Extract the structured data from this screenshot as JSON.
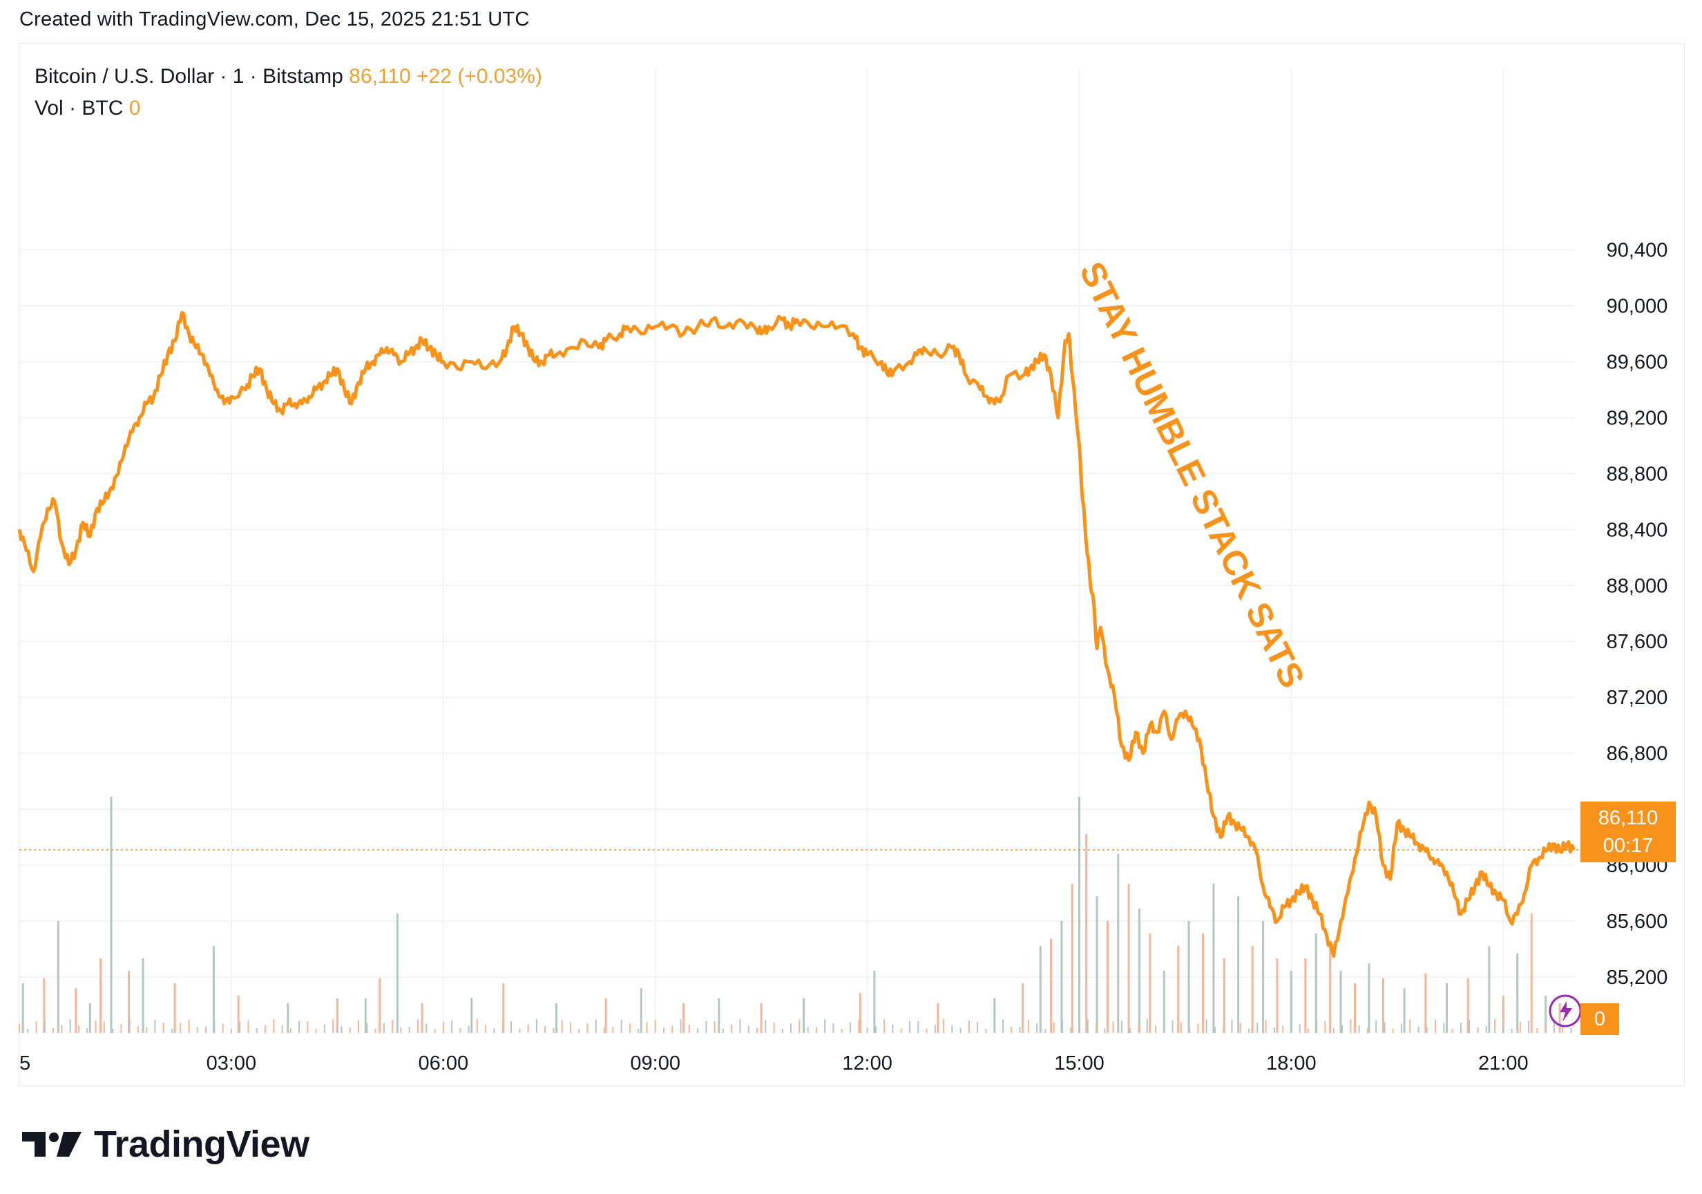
{
  "header": {
    "created_text": "Created with TradingView.com, Dec 15, 2025 21:51 UTC"
  },
  "legend": {
    "symbol": "Bitcoin / U.S. Dollar · 1 · Bitstamp",
    "last_price": "86,110",
    "change": "+22 (+0.03%)",
    "volume_label": "Vol · BTC",
    "volume_value": "0"
  },
  "price_tag": {
    "price": "86,110",
    "countdown": "00:17"
  },
  "volume_tag": {
    "value": "0"
  },
  "annotation": {
    "text": "STAY HUMBLE STACK SATS"
  },
  "brand": {
    "name": "TradingView"
  },
  "colors": {
    "line": "#f7931a",
    "tag_bg": "#f7931a",
    "legend_value": "#f0a030",
    "volume_up": "#b2c6c2",
    "volume_down": "#f2b69a",
    "grid": "#f0f3fa"
  },
  "chart_data": {
    "type": "line",
    "title": "",
    "xlabel": "",
    "ylabel": "",
    "x_ticks": [
      {
        "hour": 0,
        "label": "5"
      },
      {
        "hour": 3,
        "label": "03:00"
      },
      {
        "hour": 6,
        "label": "06:00"
      },
      {
        "hour": 9,
        "label": "09:00"
      },
      {
        "hour": 12,
        "label": "12:00"
      },
      {
        "hour": 15,
        "label": "15:00"
      },
      {
        "hour": 18,
        "label": "18:00"
      },
      {
        "hour": 21,
        "label": "21:00"
      }
    ],
    "y_ticks": [
      "85,200",
      "85,600",
      "86,000",
      "86,400",
      "86,800",
      "87,200",
      "87,600",
      "88,000",
      "88,400",
      "88,800",
      "89,200",
      "89,600",
      "90,000",
      "90,400"
    ],
    "ylim": [
      84950,
      90500
    ],
    "xlim": [
      0,
      22.1
    ],
    "grid": true,
    "last_price": 86110,
    "series": [
      {
        "points": [
          [
            0.0,
            88400
          ],
          [
            0.1,
            88250
          ],
          [
            0.2,
            88100
          ],
          [
            0.3,
            88350
          ],
          [
            0.4,
            88550
          ],
          [
            0.5,
            88600
          ],
          [
            0.6,
            88300
          ],
          [
            0.7,
            88150
          ],
          [
            0.8,
            88250
          ],
          [
            0.9,
            88450
          ],
          [
            1.0,
            88350
          ],
          [
            1.1,
            88550
          ],
          [
            1.2,
            88600
          ],
          [
            1.3,
            88700
          ],
          [
            1.4,
            88800
          ],
          [
            1.5,
            89000
          ],
          [
            1.6,
            89100
          ],
          [
            1.7,
            89200
          ],
          [
            1.8,
            89300
          ],
          [
            1.9,
            89350
          ],
          [
            2.0,
            89500
          ],
          [
            2.1,
            89650
          ],
          [
            2.2,
            89750
          ],
          [
            2.3,
            89950
          ],
          [
            2.4,
            89800
          ],
          [
            2.5,
            89700
          ],
          [
            2.6,
            89650
          ],
          [
            2.7,
            89500
          ],
          [
            2.8,
            89400
          ],
          [
            2.9,
            89300
          ],
          [
            3.0,
            89350
          ],
          [
            3.2,
            89400
          ],
          [
            3.3,
            89500
          ],
          [
            3.4,
            89550
          ],
          [
            3.5,
            89400
          ],
          [
            3.6,
            89300
          ],
          [
            3.7,
            89250
          ],
          [
            3.8,
            89300
          ],
          [
            3.9,
            89300
          ],
          [
            4.0,
            89300
          ],
          [
            4.1,
            89350
          ],
          [
            4.2,
            89400
          ],
          [
            4.3,
            89450
          ],
          [
            4.4,
            89500
          ],
          [
            4.5,
            89550
          ],
          [
            4.6,
            89400
          ],
          [
            4.7,
            89300
          ],
          [
            4.8,
            89450
          ],
          [
            4.9,
            89550
          ],
          [
            5.0,
            89600
          ],
          [
            5.1,
            89650
          ],
          [
            5.2,
            89700
          ],
          [
            5.3,
            89650
          ],
          [
            5.4,
            89600
          ],
          [
            5.5,
            89650
          ],
          [
            5.6,
            89700
          ],
          [
            5.7,
            89750
          ],
          [
            5.8,
            89700
          ],
          [
            5.9,
            89650
          ],
          [
            6.0,
            89600
          ],
          [
            6.2,
            89550
          ],
          [
            6.4,
            89600
          ],
          [
            6.6,
            89550
          ],
          [
            6.8,
            89600
          ],
          [
            6.9,
            89700
          ],
          [
            7.0,
            89850
          ],
          [
            7.1,
            89800
          ],
          [
            7.2,
            89700
          ],
          [
            7.3,
            89600
          ],
          [
            7.4,
            89600
          ],
          [
            7.5,
            89650
          ],
          [
            7.6,
            89650
          ],
          [
            7.8,
            89700
          ],
          [
            8.0,
            89750
          ],
          [
            8.2,
            89700
          ],
          [
            8.3,
            89750
          ],
          [
            8.5,
            89800
          ],
          [
            8.6,
            89850
          ],
          [
            8.8,
            89800
          ],
          [
            9.0,
            89850
          ],
          [
            9.2,
            89850
          ],
          [
            9.4,
            89800
          ],
          [
            9.6,
            89850
          ],
          [
            9.8,
            89900
          ],
          [
            10.0,
            89850
          ],
          [
            10.2,
            89900
          ],
          [
            10.4,
            89850
          ],
          [
            10.5,
            89800
          ],
          [
            10.6,
            89850
          ],
          [
            10.8,
            89900
          ],
          [
            10.9,
            89850
          ],
          [
            11.0,
            89900
          ],
          [
            11.2,
            89850
          ],
          [
            11.4,
            89850
          ],
          [
            11.6,
            89850
          ],
          [
            11.8,
            89800
          ],
          [
            11.9,
            89700
          ],
          [
            12.0,
            89650
          ],
          [
            12.2,
            89600
          ],
          [
            12.3,
            89500
          ],
          [
            12.4,
            89550
          ],
          [
            12.6,
            89600
          ],
          [
            12.7,
            89650
          ],
          [
            12.8,
            89700
          ],
          [
            13.0,
            89650
          ],
          [
            13.2,
            89700
          ],
          [
            13.3,
            89650
          ],
          [
            13.4,
            89500
          ],
          [
            13.6,
            89400
          ],
          [
            13.7,
            89350
          ],
          [
            13.8,
            89300
          ],
          [
            13.9,
            89350
          ],
          [
            14.0,
            89500
          ],
          [
            14.2,
            89500
          ],
          [
            14.3,
            89550
          ],
          [
            14.4,
            89600
          ],
          [
            14.5,
            89650
          ],
          [
            14.6,
            89500
          ],
          [
            14.7,
            89200
          ],
          [
            14.8,
            89750
          ],
          [
            14.85,
            89800
          ],
          [
            14.9,
            89500
          ],
          [
            15.0,
            89000
          ],
          [
            15.05,
            88600
          ],
          [
            15.1,
            88300
          ],
          [
            15.15,
            88050
          ],
          [
            15.2,
            87900
          ],
          [
            15.25,
            87550
          ],
          [
            15.3,
            87700
          ],
          [
            15.4,
            87400
          ],
          [
            15.5,
            87200
          ],
          [
            15.6,
            86850
          ],
          [
            15.7,
            86750
          ],
          [
            15.8,
            86950
          ],
          [
            15.9,
            86800
          ],
          [
            16.0,
            87000
          ],
          [
            16.1,
            86950
          ],
          [
            16.2,
            87100
          ],
          [
            16.3,
            86900
          ],
          [
            16.4,
            87050
          ],
          [
            16.5,
            87100
          ],
          [
            16.6,
            87000
          ],
          [
            16.7,
            86900
          ],
          [
            16.8,
            86600
          ],
          [
            16.9,
            86350
          ],
          [
            17.0,
            86200
          ],
          [
            17.1,
            86350
          ],
          [
            17.2,
            86300
          ],
          [
            17.3,
            86250
          ],
          [
            17.4,
            86200
          ],
          [
            17.5,
            86100
          ],
          [
            17.6,
            85850
          ],
          [
            17.7,
            85700
          ],
          [
            17.8,
            85600
          ],
          [
            17.9,
            85700
          ],
          [
            18.0,
            85750
          ],
          [
            18.1,
            85800
          ],
          [
            18.2,
            85850
          ],
          [
            18.3,
            85750
          ],
          [
            18.4,
            85650
          ],
          [
            18.5,
            85500
          ],
          [
            18.6,
            85350
          ],
          [
            18.7,
            85600
          ],
          [
            18.8,
            85800
          ],
          [
            18.9,
            86050
          ],
          [
            19.0,
            86250
          ],
          [
            19.1,
            86450
          ],
          [
            19.2,
            86350
          ],
          [
            19.3,
            86000
          ],
          [
            19.4,
            85900
          ],
          [
            19.5,
            86300
          ],
          [
            19.6,
            86250
          ],
          [
            19.7,
            86200
          ],
          [
            19.8,
            86150
          ],
          [
            19.9,
            86100
          ],
          [
            20.0,
            86050
          ],
          [
            20.1,
            86000
          ],
          [
            20.2,
            85950
          ],
          [
            20.3,
            85800
          ],
          [
            20.4,
            85650
          ],
          [
            20.5,
            85750
          ],
          [
            20.6,
            85850
          ],
          [
            20.7,
            85950
          ],
          [
            20.8,
            85850
          ],
          [
            20.9,
            85800
          ],
          [
            21.0,
            85750
          ],
          [
            21.1,
            85600
          ],
          [
            21.2,
            85650
          ],
          [
            21.3,
            85800
          ],
          [
            21.4,
            86000
          ],
          [
            21.5,
            86050
          ],
          [
            21.6,
            86100
          ],
          [
            21.7,
            86150
          ],
          [
            21.8,
            86100
          ],
          [
            21.9,
            86150
          ],
          [
            22.0,
            86110
          ]
        ]
      }
    ],
    "volume_bars": [
      [
        0.05,
        0.2,
        1
      ],
      [
        0.35,
        0.22,
        0
      ],
      [
        0.55,
        0.45,
        1
      ],
      [
        0.8,
        0.18,
        0
      ],
      [
        1.0,
        0.12,
        1
      ],
      [
        1.15,
        0.3,
        0
      ],
      [
        1.3,
        0.95,
        1
      ],
      [
        1.55,
        0.25,
        0
      ],
      [
        1.75,
        0.3,
        1
      ],
      [
        2.2,
        0.2,
        0
      ],
      [
        2.75,
        0.35,
        1
      ],
      [
        3.1,
        0.15,
        0
      ],
      [
        3.8,
        0.12,
        1
      ],
      [
        4.5,
        0.14,
        0
      ],
      [
        4.9,
        0.14,
        1
      ],
      [
        5.1,
        0.22,
        0
      ],
      [
        5.35,
        0.48,
        1
      ],
      [
        5.7,
        0.12,
        0
      ],
      [
        6.4,
        0.14,
        1
      ],
      [
        6.85,
        0.2,
        0
      ],
      [
        7.6,
        0.12,
        1
      ],
      [
        8.3,
        0.14,
        0
      ],
      [
        8.8,
        0.18,
        1
      ],
      [
        9.4,
        0.12,
        0
      ],
      [
        9.9,
        0.14,
        1
      ],
      [
        10.5,
        0.12,
        0
      ],
      [
        11.1,
        0.14,
        1
      ],
      [
        11.9,
        0.16,
        0
      ],
      [
        12.1,
        0.25,
        1
      ],
      [
        13.0,
        0.12,
        0
      ],
      [
        13.8,
        0.14,
        1
      ],
      [
        14.2,
        0.2,
        0
      ],
      [
        14.45,
        0.35,
        1
      ],
      [
        14.6,
        0.38,
        0
      ],
      [
        14.75,
        0.45,
        1
      ],
      [
        14.9,
        0.6,
        0
      ],
      [
        15.0,
        0.95,
        1
      ],
      [
        15.1,
        0.8,
        0
      ],
      [
        15.25,
        0.55,
        1
      ],
      [
        15.4,
        0.45,
        0
      ],
      [
        15.55,
        0.72,
        1
      ],
      [
        15.7,
        0.6,
        0
      ],
      [
        15.85,
        0.5,
        1
      ],
      [
        16.0,
        0.4,
        0
      ],
      [
        16.2,
        0.25,
        1
      ],
      [
        16.4,
        0.35,
        0
      ],
      [
        16.55,
        0.45,
        1
      ],
      [
        16.75,
        0.4,
        0
      ],
      [
        16.9,
        0.6,
        1
      ],
      [
        17.05,
        0.3,
        0
      ],
      [
        17.25,
        0.55,
        1
      ],
      [
        17.45,
        0.35,
        0
      ],
      [
        17.6,
        0.45,
        1
      ],
      [
        17.8,
        0.3,
        0
      ],
      [
        18.0,
        0.25,
        1
      ],
      [
        18.2,
        0.3,
        0
      ],
      [
        18.35,
        0.4,
        1
      ],
      [
        18.55,
        0.35,
        0
      ],
      [
        18.7,
        0.25,
        1
      ],
      [
        18.9,
        0.2,
        0
      ],
      [
        19.1,
        0.28,
        1
      ],
      [
        19.3,
        0.22,
        0
      ],
      [
        19.6,
        0.18,
        1
      ],
      [
        19.9,
        0.24,
        0
      ],
      [
        20.2,
        0.2,
        1
      ],
      [
        20.5,
        0.22,
        0
      ],
      [
        20.8,
        0.35,
        1
      ],
      [
        21.0,
        0.15,
        0
      ],
      [
        21.2,
        0.32,
        1
      ],
      [
        21.4,
        0.48,
        0
      ],
      [
        21.6,
        0.15,
        1
      ],
      [
        21.8,
        0.12,
        0
      ]
    ]
  }
}
